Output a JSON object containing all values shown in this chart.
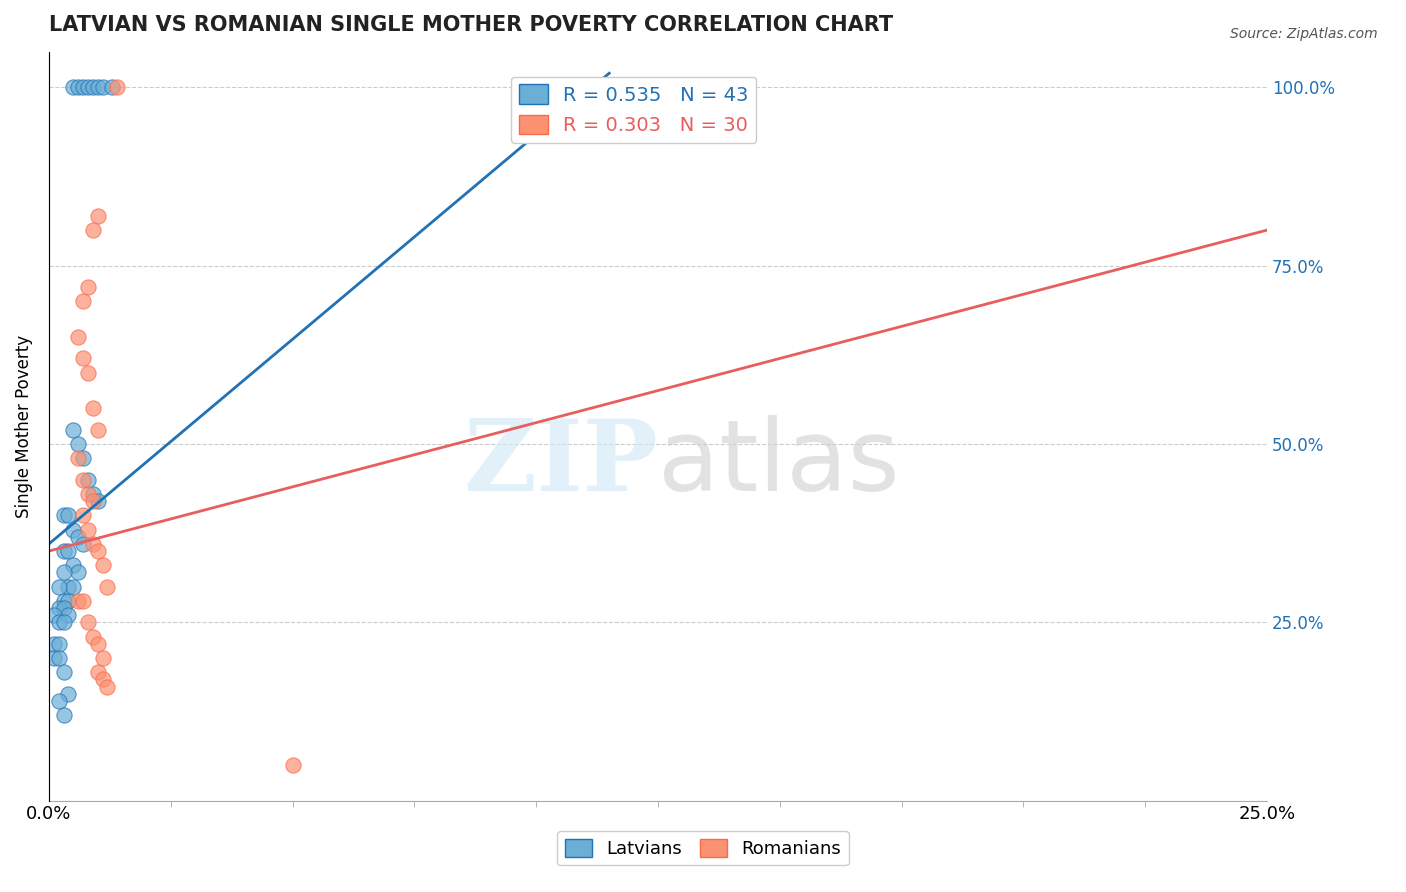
{
  "title": "LATVIAN VS ROMANIAN SINGLE MOTHER POVERTY CORRELATION CHART",
  "source": "Source: ZipAtlas.com",
  "ylabel": "Single Mother Poverty",
  "yticks": [
    0.0,
    0.25,
    0.5,
    0.75,
    1.0
  ],
  "legend_blue_r": "0.535",
  "legend_blue_n": "43",
  "legend_pink_r": "0.303",
  "legend_pink_n": "30",
  "blue_color": "#6baed6",
  "pink_color": "#fc9272",
  "blue_line_color": "#2171b5",
  "pink_line_color": "#e85d5d",
  "blue_scatter_x": [
    0.005,
    0.006,
    0.007,
    0.008,
    0.009,
    0.01,
    0.011,
    0.013,
    0.005,
    0.006,
    0.007,
    0.008,
    0.009,
    0.01,
    0.003,
    0.004,
    0.005,
    0.006,
    0.007,
    0.003,
    0.004,
    0.005,
    0.006,
    0.003,
    0.004,
    0.005,
    0.002,
    0.003,
    0.004,
    0.002,
    0.003,
    0.004,
    0.001,
    0.002,
    0.003,
    0.001,
    0.002,
    0.001,
    0.002,
    0.003,
    0.004,
    0.002,
    0.003
  ],
  "blue_scatter_y": [
    1.0,
    1.0,
    1.0,
    1.0,
    1.0,
    1.0,
    1.0,
    1.0,
    0.52,
    0.5,
    0.48,
    0.45,
    0.43,
    0.42,
    0.4,
    0.4,
    0.38,
    0.37,
    0.36,
    0.35,
    0.35,
    0.33,
    0.32,
    0.32,
    0.3,
    0.3,
    0.3,
    0.28,
    0.28,
    0.27,
    0.27,
    0.26,
    0.26,
    0.25,
    0.25,
    0.22,
    0.22,
    0.2,
    0.2,
    0.18,
    0.15,
    0.14,
    0.12
  ],
  "pink_scatter_x": [
    0.014,
    0.01,
    0.009,
    0.008,
    0.007,
    0.006,
    0.007,
    0.008,
    0.009,
    0.01,
    0.006,
    0.007,
    0.008,
    0.009,
    0.007,
    0.008,
    0.009,
    0.01,
    0.011,
    0.012,
    0.006,
    0.007,
    0.008,
    0.009,
    0.01,
    0.011,
    0.05,
    0.01,
    0.011,
    0.012
  ],
  "pink_scatter_y": [
    1.0,
    0.82,
    0.8,
    0.72,
    0.7,
    0.65,
    0.62,
    0.6,
    0.55,
    0.52,
    0.48,
    0.45,
    0.43,
    0.42,
    0.4,
    0.38,
    0.36,
    0.35,
    0.33,
    0.3,
    0.28,
    0.28,
    0.25,
    0.23,
    0.22,
    0.2,
    0.05,
    0.18,
    0.17,
    0.16
  ],
  "blue_line_x0": 0.0,
  "blue_line_x1": 0.115,
  "blue_line_y0": 0.36,
  "blue_line_y1": 1.02,
  "pink_line_x0": 0.0,
  "pink_line_x1": 0.25,
  "pink_line_y0": 0.35,
  "pink_line_y1": 0.8,
  "xmin": 0.0,
  "xmax": 0.25,
  "ymin": 0.0,
  "ymax": 1.05
}
